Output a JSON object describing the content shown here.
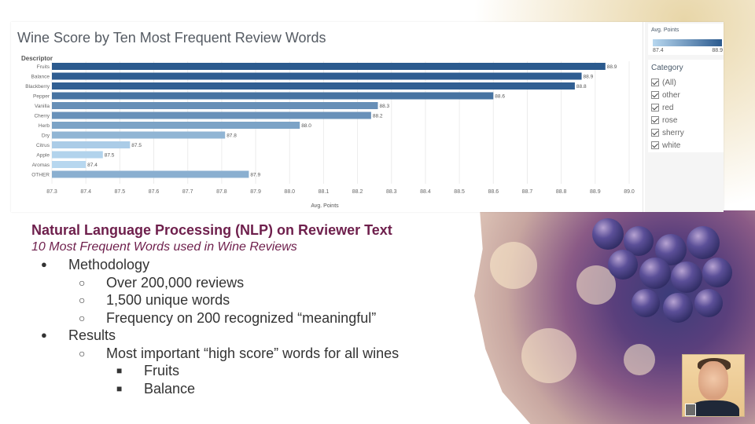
{
  "viz": {
    "title": "Wine Score by Ten Most Frequent Review Words",
    "descriptor_header": "Descriptor"
  },
  "legend": {
    "title": "Avg. Points",
    "min": "87.4",
    "max": "88.9",
    "color_low": "#b7d7ef",
    "color_high": "#2b5a8e"
  },
  "category_filter": {
    "title": "Category",
    "items": [
      "(All)",
      "other",
      "red",
      "rose",
      "sherry",
      "white"
    ]
  },
  "chart_data": {
    "type": "bar",
    "orientation": "horizontal",
    "title": "Wine Score by Ten Most Frequent Review Words",
    "xlabel": "Avg. Points",
    "ylabel": "Descriptor",
    "categories": [
      "Fruits",
      "Balance",
      "Blackberry",
      "Pepper",
      "Vanilla",
      "Cherry",
      "Herb",
      "Dry",
      "Citrus",
      "Apple",
      "Aromas",
      "OTHER"
    ],
    "values": [
      88.93,
      88.86,
      88.84,
      88.6,
      88.26,
      88.24,
      88.03,
      87.81,
      87.53,
      87.45,
      87.4,
      87.88
    ],
    "data_labels": [
      "88.9",
      "88.9",
      "88.8",
      "88.6",
      "88.3",
      "88.2",
      "88.0",
      "87.8",
      "87.5",
      "87.5",
      "87.4",
      "87.9"
    ],
    "xlim": [
      87.3,
      89.0
    ],
    "xticks": [
      "87.3",
      "87.4",
      "87.5",
      "87.6",
      "87.7",
      "87.8",
      "87.9",
      "88.0",
      "88.1",
      "88.2",
      "88.3",
      "88.4",
      "88.5",
      "88.6",
      "88.7",
      "88.8",
      "88.9",
      "89.0"
    ],
    "grid": true,
    "legend_position": "top-right"
  },
  "slide": {
    "heading": "Natural Language Processing (NLP) on Reviewer Text",
    "subheading": "10 Most Frequent Words used in Wine Reviews",
    "bullets": [
      {
        "level": 1,
        "symbol": "●",
        "text": "Methodology"
      },
      {
        "level": 2,
        "symbol": "○",
        "text": "Over 200,000 reviews"
      },
      {
        "level": 2,
        "symbol": "○",
        "text": "1,500 unique words"
      },
      {
        "level": 2,
        "symbol": "○",
        "text": "Frequency on 200 recognized “meaningful”"
      },
      {
        "level": 1,
        "symbol": "●",
        "text": "Results"
      },
      {
        "level": 2,
        "symbol": "○",
        "text": "Most important “high score” words for all wines"
      },
      {
        "level": 3,
        "symbol": "■",
        "text": "Fruits"
      },
      {
        "level": 3,
        "symbol": "■",
        "text": "Balance"
      }
    ]
  }
}
